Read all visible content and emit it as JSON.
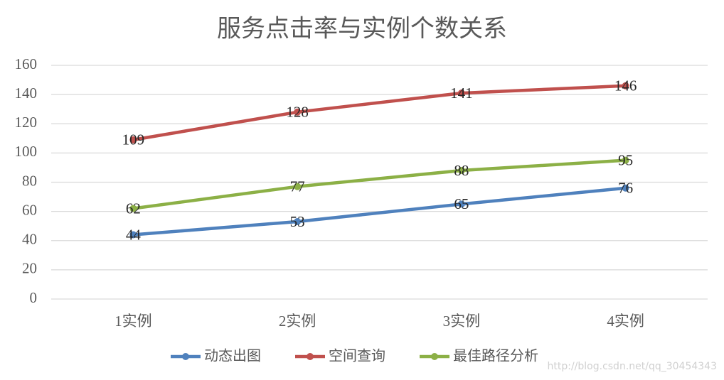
{
  "chart_data": {
    "type": "line",
    "title": "服务点击率与实例个数关系",
    "categories": [
      "1实例",
      "2实例",
      "3实例",
      "4实例"
    ],
    "series": [
      {
        "name": "动态出图",
        "color": "#4f81bd",
        "values": [
          44,
          53,
          65,
          76
        ]
      },
      {
        "name": "空间查询",
        "color": "#c0504d",
        "values": [
          109,
          128,
          141,
          146
        ]
      },
      {
        "name": "最佳路径分析",
        "color": "#8cb046",
        "values": [
          62,
          77,
          88,
          95
        ]
      }
    ],
    "ylim": [
      0,
      160
    ],
    "yticks": [
      0,
      20,
      40,
      60,
      80,
      100,
      120,
      140,
      160
    ],
    "grid": true,
    "legend": "bottom",
    "data_labels": true,
    "watermark": "http://blog.csdn.net/qq_30454343"
  }
}
